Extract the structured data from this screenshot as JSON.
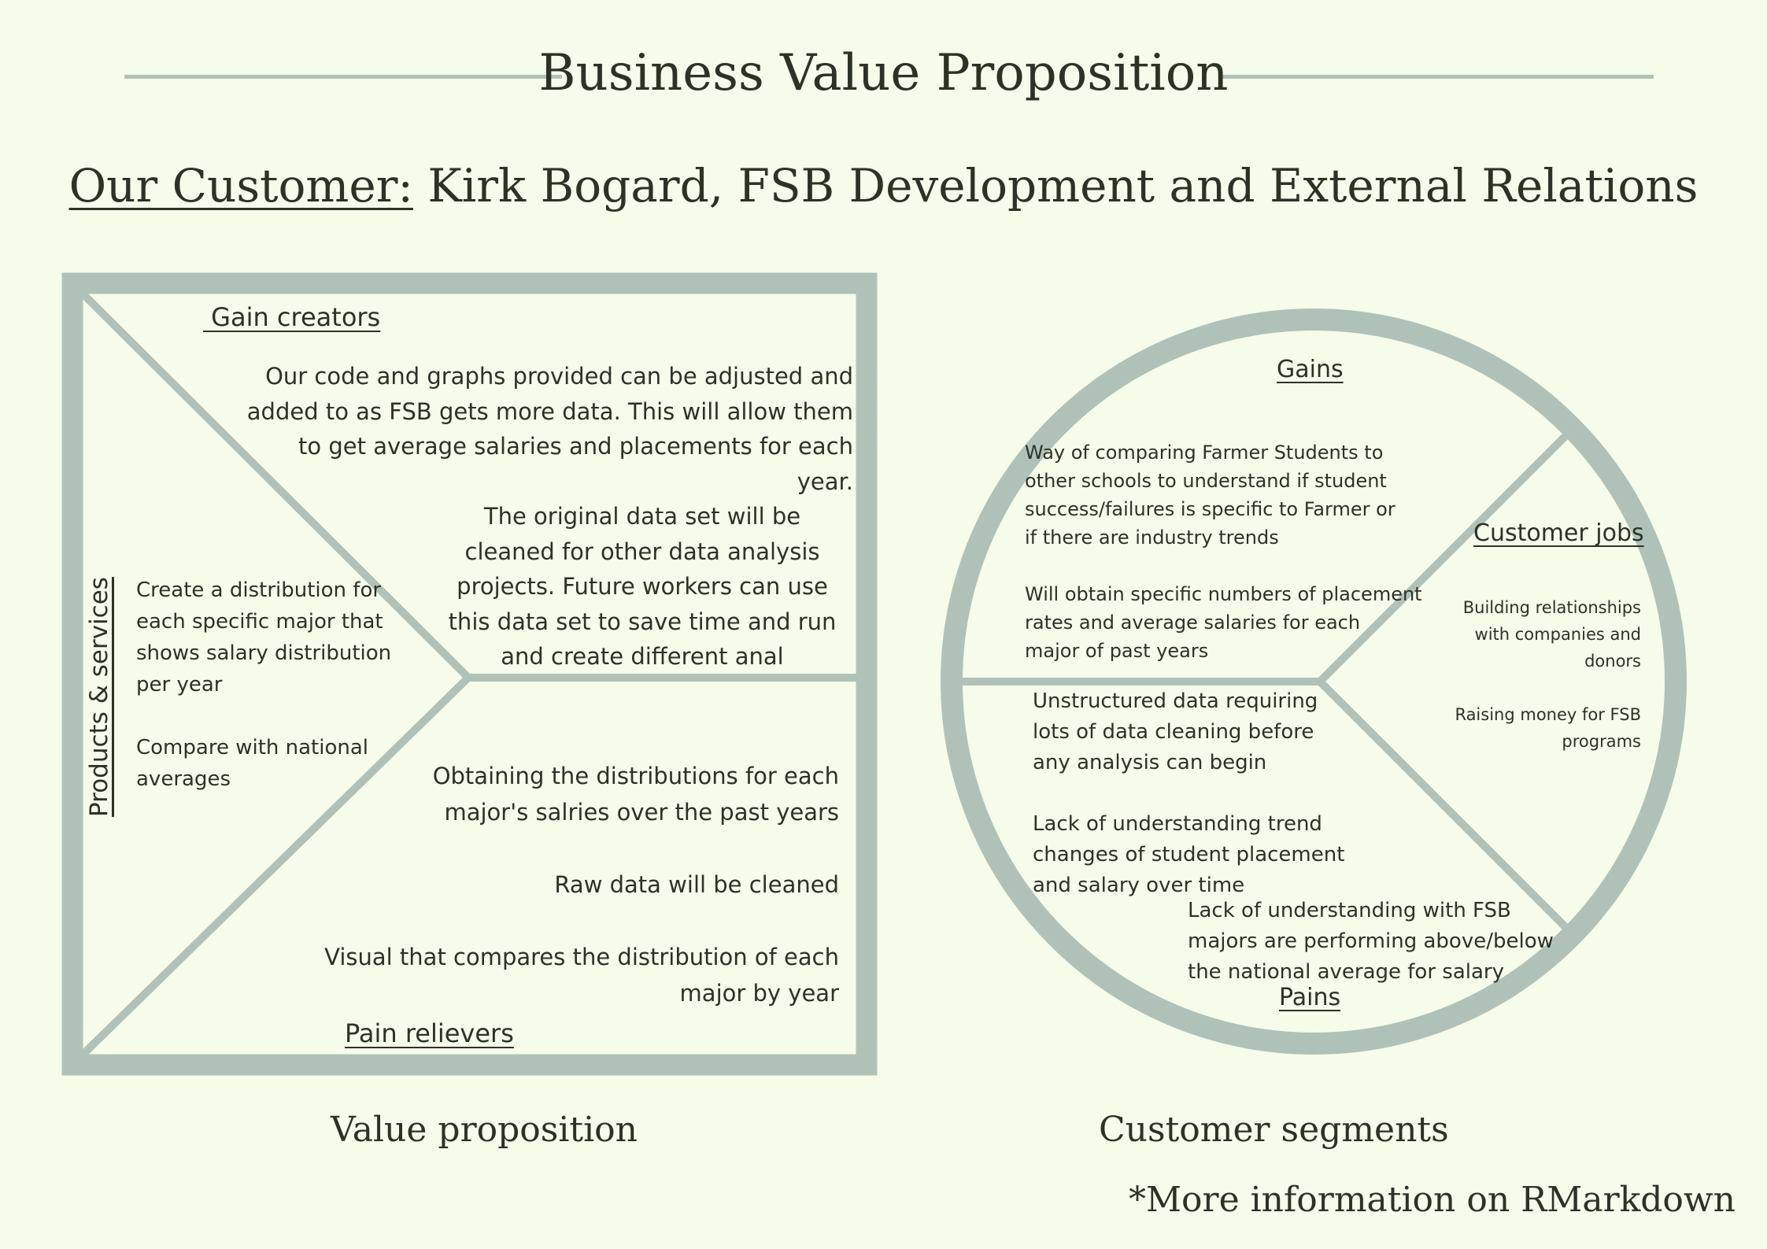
{
  "title": "Business Value Proposition",
  "customer": {
    "label": "Our Customer:",
    "name": "Kirk Bogard, FSB Development and External Relations"
  },
  "value_proposition": {
    "caption": "Value proposition",
    "products_services": {
      "heading": "Products & services",
      "text": "Create a distribution for\neach specific major that\nshows salary distribution\nper year\n\nCompare with national\naverages"
    },
    "gain_creators": {
      "heading": " Gain creators",
      "text_1": "Our code and graphs provided can be adjusted and\nadded to as FSB gets more data. This will allow them\nto get average salaries and placements for each\nyear.",
      "text_2": "The original data set will be\ncleaned for other data analysis\nprojects. Future workers can use\nthis data set to save time and run\nand create different anal"
    },
    "pain_relievers": {
      "heading": "Pain relievers",
      "text": "Obtaining the distributions for each\nmajor's  salries over the past years\n\nRaw data will be cleaned\n\nVisual that compares the distribution of each\nmajor by year"
    }
  },
  "customer_segments": {
    "caption": "Customer segments",
    "gains": {
      "heading": "Gains",
      "text": "Way of comparing Farmer Students to\nother schools to understand if student\nsuccess/failures is specific to Farmer or\nif there are industry trends\n\nWill obtain specific numbers of placement\nrates and average salaries for each\nmajor of past years"
    },
    "customer_jobs": {
      "heading": "Customer jobs",
      "text": "Building relationships\nwith companies and\ndonors\n\nRaising money for FSB\nprograms"
    },
    "pains": {
      "heading": "Pains",
      "text_1": "Unstructured data requiring\nlots of data cleaning before\nany analysis can begin\n\nLack of understanding trend\nchanges of student placement\nand salary over time",
      "text_2": "Lack of understanding with FSB\nmajors are performing above/below\nthe national average for salary"
    }
  },
  "footnote": "*More information on RMarkdown",
  "colors": {
    "background": "#f5fce9",
    "shape": "#b0c2b7",
    "text": "#2b3327"
  }
}
